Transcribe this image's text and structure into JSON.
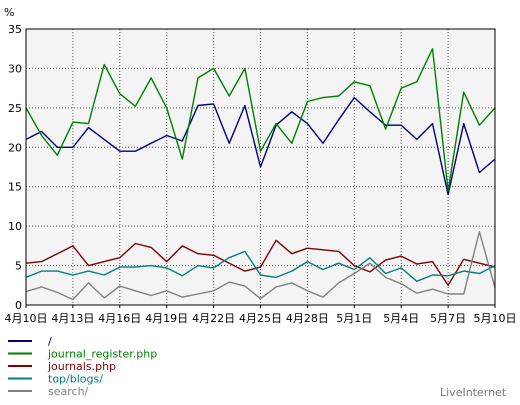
{
  "chart_data": {
    "type": "line",
    "ylabel": "%",
    "ylim": [
      0,
      35
    ],
    "yticks": [
      0,
      5,
      10,
      15,
      20,
      25,
      30,
      35
    ],
    "x_tick_labels": [
      "4月10日",
      "4月13日",
      "4月16日",
      "4月19日",
      "4月22日",
      "4月25日",
      "4月28日",
      "5月1日",
      "5月4日",
      "5月7日",
      "5月10日"
    ],
    "grid": true,
    "legend_position": "bottom-left",
    "brand": "LiveInternet",
    "series": [
      {
        "name": "/",
        "color": "#000080",
        "values": [
          21.0,
          22.0,
          20.0,
          20.0,
          22.5,
          21.0,
          19.5,
          19.5,
          20.5,
          21.5,
          20.8,
          25.3,
          25.5,
          20.5,
          25.3,
          17.5,
          22.8,
          24.5,
          23.0,
          20.5,
          23.5,
          26.3,
          24.5,
          22.8,
          22.8,
          21.0,
          23.0,
          14.0,
          23.0,
          16.8,
          18.5
        ]
      },
      {
        "name": "journal_register.php",
        "color": "#008000",
        "values": [
          25.0,
          21.5,
          19.0,
          23.2,
          23.0,
          30.5,
          26.8,
          25.2,
          28.8,
          25.0,
          18.5,
          28.8,
          30.0,
          26.5,
          30.0,
          19.5,
          23.0,
          20.5,
          25.8,
          26.3,
          26.5,
          28.3,
          27.8,
          22.3,
          27.5,
          28.3,
          32.5,
          14.5,
          27.0,
          22.8,
          25.0
        ]
      },
      {
        "name": "journals.php",
        "color": "#800000",
        "values": [
          5.3,
          5.5,
          6.5,
          7.5,
          5.0,
          5.5,
          6.0,
          7.8,
          7.3,
          5.5,
          7.5,
          6.5,
          6.3,
          5.3,
          4.3,
          4.8,
          8.2,
          6.5,
          7.2,
          7.0,
          6.8,
          5.0,
          4.2,
          5.7,
          6.2,
          5.2,
          5.5,
          2.5,
          5.8,
          5.3,
          4.8
        ]
      },
      {
        "name": "top/blogs/",
        "color": "#008080",
        "values": [
          3.5,
          4.3,
          4.3,
          3.8,
          4.3,
          3.8,
          4.8,
          4.8,
          5.0,
          4.7,
          3.7,
          5.0,
          4.7,
          6.0,
          6.8,
          3.8,
          3.5,
          4.3,
          5.5,
          4.5,
          5.3,
          4.5,
          6.0,
          4.0,
          4.7,
          3.0,
          3.8,
          3.7,
          4.3,
          4.0,
          5.0
        ]
      },
      {
        "name": "search/",
        "color": "#808080",
        "values": [
          1.7,
          2.3,
          1.6,
          0.7,
          2.8,
          0.9,
          2.4,
          1.8,
          1.2,
          1.8,
          1.0,
          1.4,
          1.8,
          2.9,
          2.4,
          0.8,
          2.3,
          2.8,
          1.8,
          1.0,
          2.8,
          4.0,
          5.3,
          3.5,
          2.7,
          1.5,
          2.0,
          1.4,
          1.4,
          9.3,
          2.2
        ]
      }
    ]
  }
}
